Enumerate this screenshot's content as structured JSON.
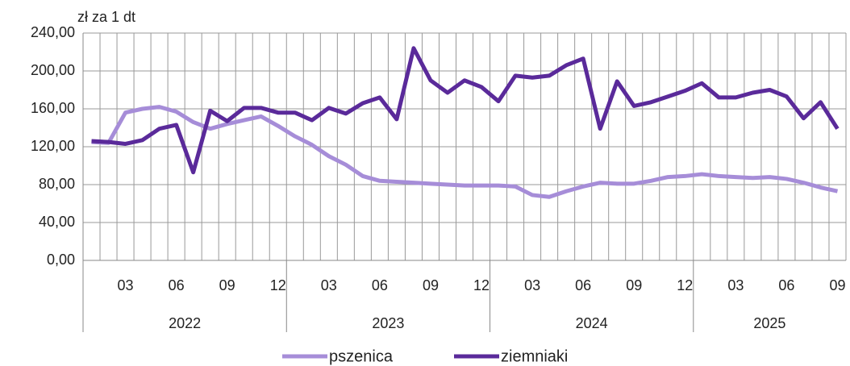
{
  "chart_data": {
    "type": "line",
    "y_label": "zł za 1 dt",
    "categories": [
      null,
      null,
      "03",
      null,
      null,
      "06",
      null,
      null,
      "09",
      null,
      null,
      "12",
      null,
      null,
      "03",
      null,
      null,
      "06",
      null,
      null,
      "09",
      null,
      null,
      "12",
      null,
      null,
      "03",
      null,
      null,
      "06",
      null,
      null,
      "09",
      null,
      null,
      "12",
      null,
      null,
      "03",
      null,
      null,
      "06",
      null,
      null,
      "09"
    ],
    "years": [
      "2022",
      "2023",
      "2024",
      "2025"
    ],
    "series": [
      {
        "name": "pszenica",
        "color": "#a68dd8",
        "values": [
          125,
          124,
          156,
          160,
          162,
          157,
          146,
          139,
          144,
          148,
          152,
          142,
          131,
          122,
          110,
          101,
          89,
          84,
          83,
          82,
          81,
          80,
          79,
          79,
          79,
          78,
          69,
          67,
          73,
          78,
          82,
          81,
          81,
          84,
          88,
          89,
          91,
          89,
          88,
          87,
          88,
          86,
          82,
          77,
          73
        ]
      },
      {
        "name": "ziemniaki",
        "color": "#5a2a9a",
        "values": [
          126,
          125,
          123,
          127,
          139,
          143,
          93,
          158,
          147,
          161,
          161,
          156,
          156,
          148,
          161,
          155,
          166,
          172,
          149,
          224,
          190,
          177,
          190,
          183,
          168,
          195,
          193,
          195,
          206,
          213,
          139,
          189,
          163,
          167,
          173,
          179,
          187,
          172,
          172,
          177,
          180,
          173,
          150,
          167,
          139
        ]
      }
    ],
    "ylim": [
      0,
      240
    ],
    "yticks": [
      {
        "value": 0,
        "label": "0,00"
      },
      {
        "value": 40,
        "label": "40,00"
      },
      {
        "value": 80,
        "label": "80,00"
      },
      {
        "value": 120,
        "label": "120,00"
      },
      {
        "value": 160,
        "label": "160,00"
      },
      {
        "value": 200,
        "label": "200,00"
      },
      {
        "value": 240,
        "label": "240,00"
      }
    ],
    "grid": true,
    "legend": "bottom"
  }
}
